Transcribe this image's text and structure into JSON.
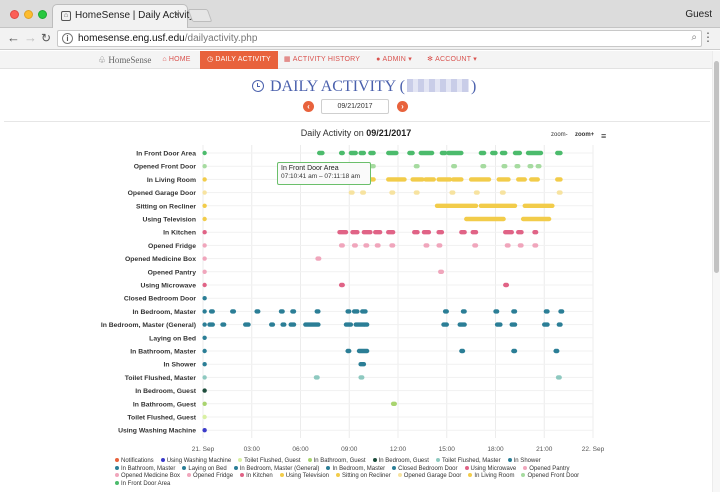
{
  "browser": {
    "tab_title": "HomeSense | Daily Activity",
    "url_host": "homesense.eng.usf.edu",
    "url_path": "/dailyactivity.php",
    "profile": "Guest"
  },
  "nav": {
    "brand": "HomeSense",
    "items": [
      {
        "label": "HOME",
        "icon": "home-icon"
      },
      {
        "label": "DAILY ACTIVITY",
        "icon": "clock-icon",
        "active": true
      },
      {
        "label": "ACTIVITY HISTORY",
        "icon": "calendar-icon"
      },
      {
        "label": "ADMIN",
        "icon": "user-icon",
        "dropdown": true
      },
      {
        "label": "ACCOUNT",
        "icon": "cogs-icon",
        "dropdown": true
      }
    ]
  },
  "page": {
    "title_prefix": "DAILY ACTIVITY (",
    "title_suffix": ")",
    "date_value": "09/21/2017"
  },
  "chart_header": {
    "title_prefix": "Daily Activity on",
    "title_date": "09/21/2017",
    "zoom_out": "zoom-",
    "zoom_in": "zoom+"
  },
  "tooltip": {
    "title": "In Front Door Area",
    "time": "07:10:41 am – 07:11:18 am"
  },
  "chart_data": {
    "type": "scatter",
    "title": "Daily Activity on 09/21/2017",
    "x_unit": "hours",
    "xlim": [
      0,
      24
    ],
    "x_tick_labels": [
      "21. Sep",
      "03:00",
      "06:00",
      "09:00",
      "12:00",
      "15:00",
      "18:00",
      "21:00",
      "22. Sep"
    ],
    "categories": [
      "In Front Door Area",
      "Opened Front Door",
      "In Living Room",
      "Opened Garage Door",
      "Sitting on Recliner",
      "Using Television",
      "In Kitchen",
      "Opened Fridge",
      "Opened Medicine Box",
      "Opened Pantry",
      "Using Microwave",
      "Closed Bedroom Door",
      "In Bedroom, Master",
      "In Bedroom, Master (General)",
      "Laying on Bed",
      "In Bathroom, Master",
      "In Shower",
      "Toilet Flushed, Master",
      "In Bedroom, Guest",
      "In Bathroom, Guest",
      "Toilet Flushed, Guest",
      "Using Washing Machine"
    ],
    "series": [
      {
        "name": "In Front Door Area",
        "color": "#4cbb6c",
        "points": [
          [
            0.1,
            0.1
          ],
          [
            7.15,
            7.35
          ],
          [
            8.5,
            8.6
          ],
          [
            9.1,
            9.4
          ],
          [
            9.7,
            9.9
          ],
          [
            10.3,
            10.5
          ],
          [
            11.4,
            11.9
          ],
          [
            12.7,
            12.9
          ],
          [
            13.4,
            14.1
          ],
          [
            14.7,
            14.9
          ],
          [
            15.1,
            15.9
          ],
          [
            17.1,
            17.3
          ],
          [
            17.8,
            18.0
          ],
          [
            18.4,
            18.6
          ],
          [
            19.2,
            19.5
          ],
          [
            20.0,
            20.8
          ],
          [
            21.8,
            22.0
          ]
        ]
      },
      {
        "name": "Opened Front Door",
        "color": "#a6dba0",
        "points": [
          [
            0.1,
            0.1
          ],
          [
            7.2,
            7.3
          ],
          [
            8.4,
            8.5
          ],
          [
            9.2,
            9.3
          ],
          [
            10.4,
            10.5
          ],
          [
            13.1,
            13.2
          ],
          [
            15.4,
            15.5
          ],
          [
            17.2,
            17.3
          ],
          [
            18.5,
            18.6
          ],
          [
            19.3,
            19.4
          ],
          [
            20.1,
            20.2
          ],
          [
            20.6,
            20.7
          ]
        ]
      },
      {
        "name": "In Living Room",
        "color": "#f2cc4a",
        "points": [
          [
            0.1,
            0.1
          ],
          [
            7.1,
            7.4
          ],
          [
            8.4,
            8.8
          ],
          [
            9.1,
            9.5
          ],
          [
            9.8,
            10.5
          ],
          [
            11.4,
            12.4
          ],
          [
            12.9,
            13.5
          ],
          [
            13.7,
            14.2
          ],
          [
            14.5,
            15.2
          ],
          [
            15.4,
            15.9
          ],
          [
            16.5,
            17.6
          ],
          [
            18.2,
            18.8
          ],
          [
            19.4,
            19.8
          ],
          [
            20.2,
            20.6
          ],
          [
            21.8,
            22.0
          ]
        ]
      },
      {
        "name": "Opened Garage Door",
        "color": "#f7e3a0",
        "points": [
          [
            0.1,
            0.1
          ],
          [
            9.1,
            9.2
          ],
          [
            9.8,
            9.9
          ],
          [
            11.6,
            11.7
          ],
          [
            13.1,
            13.2
          ],
          [
            15.3,
            15.4
          ],
          [
            16.8,
            16.9
          ],
          [
            18.4,
            18.5
          ],
          [
            21.9,
            22.0
          ]
        ]
      },
      {
        "name": "Sitting on Recliner",
        "color": "#f2cc4a",
        "points": [
          [
            0.1,
            0.1
          ],
          [
            14.4,
            16.8
          ],
          [
            17.1,
            19.2
          ],
          [
            19.8,
            21.5
          ]
        ]
      },
      {
        "name": "Using Television",
        "color": "#f2cc4a",
        "points": [
          [
            0.1,
            0.1
          ],
          [
            16.2,
            18.5
          ],
          [
            19.7,
            21.3
          ]
        ]
      },
      {
        "name": "In Kitchen",
        "color": "#e06386",
        "points": [
          [
            0.1,
            0.1
          ],
          [
            8.4,
            8.8
          ],
          [
            9.2,
            9.5
          ],
          [
            9.9,
            10.3
          ],
          [
            10.6,
            10.9
          ],
          [
            11.4,
            11.7
          ],
          [
            13.0,
            13.2
          ],
          [
            13.6,
            13.9
          ],
          [
            14.5,
            14.7
          ],
          [
            15.9,
            16.1
          ],
          [
            16.6,
            16.8
          ],
          [
            18.6,
            19.0
          ],
          [
            19.4,
            19.6
          ],
          [
            20.4,
            20.5
          ]
        ]
      },
      {
        "name": "Opened Fridge",
        "color": "#f0a6bc",
        "points": [
          [
            0.1,
            0.1
          ],
          [
            8.5,
            8.6
          ],
          [
            9.3,
            9.4
          ],
          [
            10.0,
            10.1
          ],
          [
            10.7,
            10.8
          ],
          [
            11.6,
            11.7
          ],
          [
            13.7,
            13.8
          ],
          [
            14.5,
            14.6
          ],
          [
            16.7,
            16.8
          ],
          [
            18.7,
            18.8
          ],
          [
            19.5,
            19.6
          ],
          [
            20.4,
            20.5
          ]
        ]
      },
      {
        "name": "Opened Medicine Box",
        "color": "#f0a6bc",
        "points": [
          [
            0.1,
            0.1
          ],
          [
            7.05,
            7.15
          ]
        ]
      },
      {
        "name": "Opened Pantry",
        "color": "#f0a6bc",
        "points": [
          [
            0.1,
            0.1
          ],
          [
            14.6,
            14.7
          ]
        ]
      },
      {
        "name": "Using Microwave",
        "color": "#e06386",
        "points": [
          [
            0.1,
            0.1
          ],
          [
            8.5,
            8.6
          ],
          [
            18.6,
            18.7
          ]
        ]
      },
      {
        "name": "Closed Bedroom Door",
        "color": "#2b7e96",
        "points": [
          [
            0.1,
            0.1
          ]
        ]
      },
      {
        "name": "In Bedroom, Master",
        "color": "#2b7e96",
        "points": [
          [
            0.1,
            0.1
          ],
          [
            0.5,
            0.6
          ],
          [
            1.8,
            1.9
          ],
          [
            3.3,
            3.4
          ],
          [
            4.8,
            4.9
          ],
          [
            5.5,
            5.6
          ],
          [
            7.0,
            7.1
          ],
          [
            8.9,
            9.0
          ],
          [
            9.3,
            9.5
          ],
          [
            9.8,
            10.0
          ],
          [
            14.9,
            15.0
          ],
          [
            16.0,
            16.1
          ],
          [
            18.0,
            18.1
          ],
          [
            19.1,
            19.2
          ],
          [
            21.1,
            21.2
          ],
          [
            22.0,
            22.1
          ]
        ]
      },
      {
        "name": "In Bedroom, Master (General)",
        "color": "#2b7e96",
        "points": [
          [
            0.1,
            0.1
          ],
          [
            0.4,
            0.6
          ],
          [
            1.2,
            1.3
          ],
          [
            2.6,
            2.8
          ],
          [
            4.2,
            4.3
          ],
          [
            4.9,
            5.0
          ],
          [
            5.4,
            5.6
          ],
          [
            6.3,
            7.1
          ],
          [
            8.8,
            9.1
          ],
          [
            9.4,
            9.9
          ],
          [
            9.95,
            10.1
          ],
          [
            14.8,
            15.0
          ],
          [
            15.8,
            16.1
          ],
          [
            18.1,
            18.3
          ],
          [
            19.0,
            19.2
          ],
          [
            21.0,
            21.2
          ],
          [
            21.9,
            22.0
          ]
        ]
      },
      {
        "name": "Laying on Bed",
        "color": "#2b7e96",
        "points": [
          [
            0.1,
            0.1
          ]
        ]
      },
      {
        "name": "In Bathroom, Master",
        "color": "#2b7e96",
        "points": [
          [
            0.1,
            0.1
          ],
          [
            8.9,
            9.0
          ],
          [
            9.6,
            10.1
          ],
          [
            15.9,
            16.0
          ],
          [
            19.1,
            19.2
          ],
          [
            21.7,
            21.8
          ]
        ]
      },
      {
        "name": "In Shower",
        "color": "#2b7e96",
        "points": [
          [
            0.1,
            0.1
          ],
          [
            9.7,
            9.9
          ]
        ]
      },
      {
        "name": "Toilet Flushed, Master",
        "color": "#8ec9c0",
        "points": [
          [
            0.1,
            0.1
          ],
          [
            6.95,
            7.05
          ],
          [
            9.7,
            9.8
          ],
          [
            21.85,
            21.95
          ]
        ]
      },
      {
        "name": "In Bedroom, Guest",
        "color": "#1f4e3d",
        "points": [
          [
            0.1,
            0.1
          ]
        ]
      },
      {
        "name": "In Bathroom, Guest",
        "color": "#a9d46f",
        "points": [
          [
            0.1,
            0.1
          ],
          [
            11.7,
            11.8
          ]
        ]
      },
      {
        "name": "Toilet Flushed, Guest",
        "color": "#d9f0a3",
        "points": [
          [
            0.1,
            0.1
          ]
        ]
      },
      {
        "name": "Using Washing Machine",
        "color": "#3c3cc9",
        "points": [
          [
            0.1,
            0.1
          ]
        ]
      }
    ],
    "legend": [
      {
        "name": "Notifications",
        "color": "#e8623c"
      },
      {
        "name": "Using Washing Machine",
        "color": "#3c3cc9"
      },
      {
        "name": "Toilet Flushed, Guest",
        "color": "#d9f0a3"
      },
      {
        "name": "In Bathroom, Guest",
        "color": "#a9d46f"
      },
      {
        "name": "In Bedroom, Guest",
        "color": "#1f4e3d"
      },
      {
        "name": "Toilet Flushed, Master",
        "color": "#8ec9c0"
      },
      {
        "name": "In Shower",
        "color": "#2b7e96"
      },
      {
        "name": "In Bathroom, Master",
        "color": "#2b7e96"
      },
      {
        "name": "Laying on Bed",
        "color": "#2b7e96"
      },
      {
        "name": "In Bedroom, Master (General)",
        "color": "#2b7e96"
      },
      {
        "name": "In Bedroom, Master",
        "color": "#2b7e96"
      },
      {
        "name": "Closed Bedroom Door",
        "color": "#2b7e96"
      },
      {
        "name": "Using Microwave",
        "color": "#e06386"
      },
      {
        "name": "Opened Pantry",
        "color": "#f0a6bc"
      },
      {
        "name": "Opened Medicine Box",
        "color": "#f0a6bc"
      },
      {
        "name": "Opened Fridge",
        "color": "#f0a6bc"
      },
      {
        "name": "In Kitchen",
        "color": "#e06386"
      },
      {
        "name": "Using Television",
        "color": "#f2cc4a"
      },
      {
        "name": "Sitting on Recliner",
        "color": "#f2cc4a"
      },
      {
        "name": "Opened Garage Door",
        "color": "#f7e3a0"
      },
      {
        "name": "In Living Room",
        "color": "#f2cc4a"
      },
      {
        "name": "Opened Front Door",
        "color": "#a6dba0"
      },
      {
        "name": "In Front Door Area",
        "color": "#4cbb6c"
      }
    ],
    "grid": true,
    "legend_position": "bottom"
  }
}
